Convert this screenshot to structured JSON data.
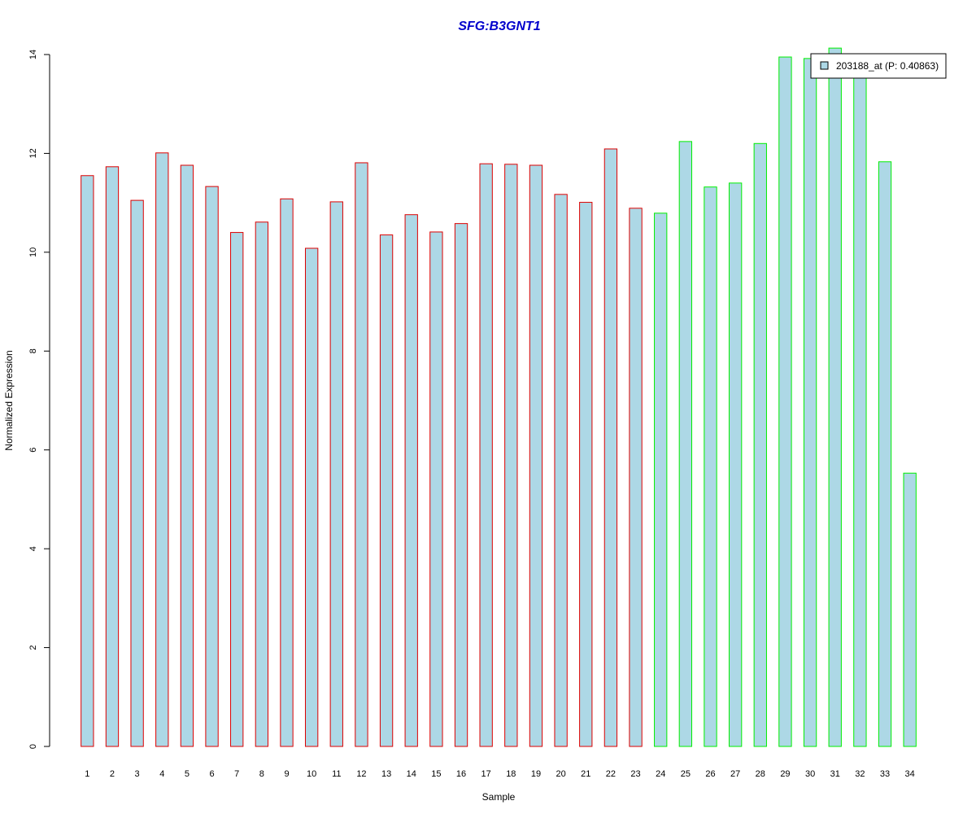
{
  "chart_data": {
    "type": "bar",
    "title": "SFG:B3GNT1",
    "xlabel": "Sample",
    "ylabel": "Normalized Expression",
    "ylim": [
      0,
      14
    ],
    "yticks": [
      0,
      2,
      4,
      6,
      8,
      10,
      12,
      14
    ],
    "categories": [
      "1",
      "2",
      "3",
      "4",
      "5",
      "6",
      "7",
      "8",
      "9",
      "10",
      "11",
      "12",
      "13",
      "14",
      "15",
      "16",
      "17",
      "18",
      "19",
      "20",
      "21",
      "22",
      "23",
      "24",
      "25",
      "26",
      "27",
      "28",
      "29",
      "30",
      "31",
      "32",
      "33",
      "34"
    ],
    "values": [
      11.55,
      11.73,
      11.05,
      12.01,
      11.76,
      11.33,
      10.4,
      10.61,
      11.08,
      10.08,
      11.02,
      11.81,
      10.35,
      10.76,
      10.41,
      10.58,
      11.79,
      11.78,
      11.76,
      11.17,
      11.01,
      12.09,
      10.89,
      10.79,
      12.24,
      11.32,
      11.4,
      12.2,
      13.95,
      13.92,
      14.13,
      13.7,
      11.83,
      5.53
    ],
    "group": [
      0,
      0,
      0,
      0,
      0,
      0,
      0,
      0,
      0,
      0,
      0,
      0,
      0,
      0,
      0,
      0,
      0,
      0,
      0,
      0,
      0,
      0,
      0,
      1,
      1,
      1,
      1,
      1,
      1,
      1,
      1,
      1,
      1,
      1
    ],
    "fill_color": "#add8e6",
    "group_colors": [
      "#dd0000",
      "#00ee00"
    ],
    "legend": {
      "label": "203188_at (P: 0.40863)",
      "position": "top-right"
    }
  }
}
